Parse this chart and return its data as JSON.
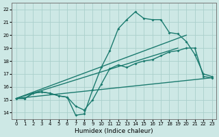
{
  "title": "",
  "xlabel": "Humidex (Indice chaleur)",
  "ylabel": "",
  "background_color": "#cde8e5",
  "grid_color": "#aacfcb",
  "line_color": "#1a7a6e",
  "xlim": [
    -0.5,
    23.5
  ],
  "ylim": [
    13.5,
    22.5
  ],
  "xticks": [
    0,
    1,
    2,
    3,
    4,
    5,
    6,
    7,
    8,
    9,
    10,
    11,
    12,
    13,
    14,
    15,
    16,
    17,
    18,
    19,
    20,
    21,
    22,
    23
  ],
  "yticks": [
    14,
    15,
    16,
    17,
    18,
    19,
    20,
    21,
    22
  ],
  "series1_x": [
    0,
    1,
    2,
    3,
    4,
    5,
    6,
    7,
    8,
    9,
    10,
    11,
    12,
    13,
    14,
    15,
    16,
    17,
    18,
    19,
    20,
    21,
    22,
    23
  ],
  "series1_y": [
    15.1,
    15.1,
    15.5,
    15.6,
    15.5,
    15.3,
    15.2,
    13.8,
    13.9,
    15.8,
    17.5,
    18.8,
    20.5,
    21.2,
    21.8,
    21.3,
    21.2,
    21.2,
    20.2,
    20.1,
    19.5,
    18.5,
    17.0,
    16.8
  ],
  "series2_x": [
    0,
    1,
    2,
    3,
    4,
    5,
    6,
    7,
    8,
    9,
    10,
    11,
    12,
    13,
    14,
    15,
    16,
    17,
    18,
    19,
    20,
    21,
    22,
    23
  ],
  "series2_y": [
    15.1,
    15.1,
    15.5,
    15.6,
    15.5,
    15.3,
    15.2,
    14.5,
    14.2,
    15.0,
    16.2,
    17.4,
    17.7,
    17.5,
    17.8,
    18.0,
    18.1,
    18.4,
    18.7,
    18.8,
    19.0,
    19.0,
    16.8,
    16.7
  ],
  "series3_x": [
    0,
    23
  ],
  "series3_y": [
    15.1,
    16.7
  ],
  "series4_x": [
    0,
    20
  ],
  "series4_y": [
    15.1,
    20.0
  ]
}
